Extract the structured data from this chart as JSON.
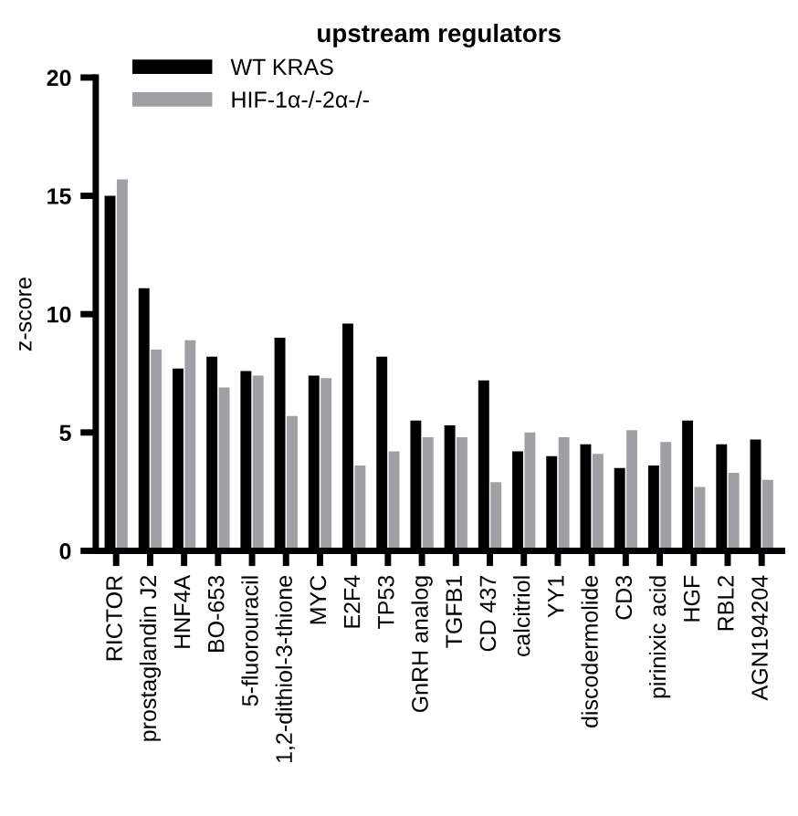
{
  "chart_data": {
    "type": "bar",
    "title": "upstream regulators",
    "ylabel": "z-score",
    "categories": [
      "RICTOR",
      "prostaglandin J2",
      "HNF4A",
      "BO-653",
      "5-fluorouracil",
      "1,2-dithiol-3-thione",
      "MYC",
      "E2F4",
      "TP53",
      "GnRH analog",
      "TGFB1",
      "CD 437",
      "calcitriol",
      "YY1",
      "discodermolide",
      "CD3",
      "pirinixic acid",
      "HGF",
      "RBL2",
      "AGN194204"
    ],
    "series": [
      {
        "name": "WT KRAS",
        "color": "#000000",
        "values": [
          15.0,
          11.1,
          7.7,
          8.2,
          7.6,
          9.0,
          7.4,
          9.6,
          8.2,
          5.5,
          5.3,
          7.2,
          4.2,
          4.0,
          4.5,
          3.5,
          3.6,
          5.5,
          4.5,
          4.7
        ]
      },
      {
        "name": "HIF-1α-/-2α-/-",
        "color": "#a0a0a4",
        "values": [
          15.7,
          8.5,
          8.9,
          6.9,
          7.4,
          5.7,
          7.3,
          3.6,
          4.2,
          4.8,
          4.8,
          2.9,
          5.0,
          4.8,
          4.1,
          5.1,
          4.6,
          2.7,
          3.3,
          3.0
        ]
      }
    ],
    "ylim": [
      0,
      20
    ],
    "yticks": [
      0,
      5,
      10,
      15,
      20
    ],
    "grid": false,
    "legend": "top left"
  }
}
